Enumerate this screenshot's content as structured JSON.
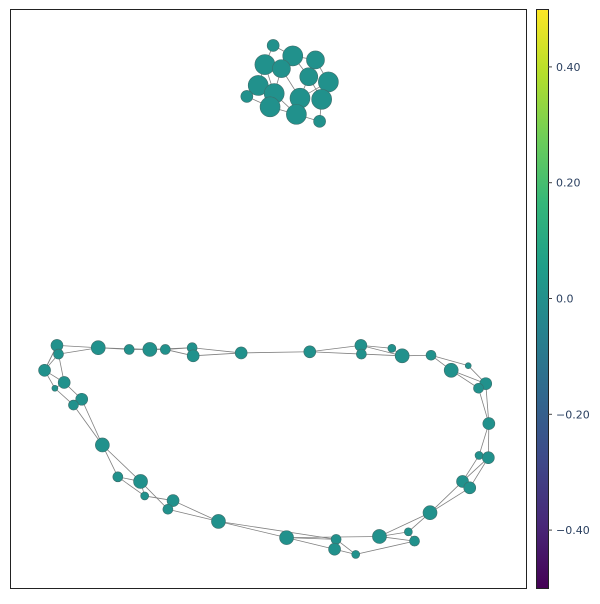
{
  "chart_data": {
    "type": "scatter",
    "title": "",
    "xlabel": "",
    "ylabel": "",
    "grid": false,
    "legend": "none",
    "xlim": [
      0,
      100
    ],
    "ylim": [
      0,
      100
    ],
    "node_color": "#21918c",
    "node_stroke": "#3d6e6b",
    "edge_color": "#808080",
    "colorbar": {
      "colorscale": "viridis",
      "range": [
        -0.5,
        0.5
      ],
      "ticks": [
        {
          "value": 0.4,
          "label": "0.40"
        },
        {
          "value": 0.2,
          "label": "0.20"
        },
        {
          "value": 0.0,
          "label": "0.0"
        },
        {
          "value": -0.2,
          "label": "−0.20"
        },
        {
          "value": -0.4,
          "label": "−0.40"
        }
      ],
      "stops": [
        "#440154",
        "#482878",
        "#3e4989",
        "#31688e",
        "#26828e",
        "#1f9e89",
        "#35b779",
        "#6ece58",
        "#b5de2b",
        "#fde725"
      ]
    },
    "nodes": [
      {
        "x": 51.0,
        "y": 93.7,
        "size": 6,
        "value": 0
      },
      {
        "x": 54.8,
        "y": 91.9,
        "size": 10,
        "value": 0
      },
      {
        "x": 59.2,
        "y": 91.2,
        "size": 9,
        "value": 0
      },
      {
        "x": 49.4,
        "y": 90.4,
        "size": 10,
        "value": 0
      },
      {
        "x": 52.6,
        "y": 89.7,
        "size": 9,
        "value": 0
      },
      {
        "x": 57.9,
        "y": 88.3,
        "size": 9,
        "value": 0
      },
      {
        "x": 61.7,
        "y": 87.4,
        "size": 10,
        "value": 0
      },
      {
        "x": 48.1,
        "y": 86.8,
        "size": 10,
        "value": 0
      },
      {
        "x": 51.2,
        "y": 85.4,
        "size": 10,
        "value": 0
      },
      {
        "x": 56.2,
        "y": 84.6,
        "size": 10,
        "value": 0
      },
      {
        "x": 60.4,
        "y": 84.4,
        "size": 10,
        "value": 0
      },
      {
        "x": 45.9,
        "y": 84.9,
        "size": 6,
        "value": 0
      },
      {
        "x": 50.4,
        "y": 83.1,
        "size": 10,
        "value": 0
      },
      {
        "x": 55.5,
        "y": 81.8,
        "size": 10,
        "value": 0
      },
      {
        "x": 60.0,
        "y": 80.6,
        "size": 6,
        "value": 0
      },
      {
        "x": 9.1,
        "y": 41.9,
        "size": 6,
        "value": 0
      },
      {
        "x": 9.4,
        "y": 40.4,
        "size": 5,
        "value": 0
      },
      {
        "x": 17.1,
        "y": 41.5,
        "size": 7,
        "value": 0
      },
      {
        "x": 23.1,
        "y": 41.2,
        "size": 5,
        "value": 0
      },
      {
        "x": 27.1,
        "y": 41.2,
        "size": 7,
        "value": 0
      },
      {
        "x": 30.1,
        "y": 41.2,
        "size": 5,
        "value": 0
      },
      {
        "x": 35.3,
        "y": 41.5,
        "size": 5,
        "value": 0
      },
      {
        "x": 35.5,
        "y": 40.1,
        "size": 6,
        "value": 0
      },
      {
        "x": 44.8,
        "y": 40.6,
        "size": 6,
        "value": 0
      },
      {
        "x": 58.1,
        "y": 40.8,
        "size": 6,
        "value": 0
      },
      {
        "x": 68.0,
        "y": 41.9,
        "size": 6,
        "value": 0
      },
      {
        "x": 68.1,
        "y": 40.4,
        "size": 5,
        "value": 0
      },
      {
        "x": 74.0,
        "y": 41.4,
        "size": 4,
        "value": 0
      },
      {
        "x": 76.0,
        "y": 40.1,
        "size": 7,
        "value": 0
      },
      {
        "x": 81.6,
        "y": 40.2,
        "size": 5,
        "value": 0
      },
      {
        "x": 88.8,
        "y": 38.4,
        "size": 3,
        "value": 0
      },
      {
        "x": 85.5,
        "y": 37.6,
        "size": 7,
        "value": 0
      },
      {
        "x": 6.7,
        "y": 37.6,
        "size": 6,
        "value": 0
      },
      {
        "x": 10.5,
        "y": 35.5,
        "size": 6,
        "value": 0
      },
      {
        "x": 8.7,
        "y": 34.5,
        "size": 3,
        "value": 0
      },
      {
        "x": 13.9,
        "y": 32.6,
        "size": 6,
        "value": 0
      },
      {
        "x": 12.3,
        "y": 31.6,
        "size": 5,
        "value": 0
      },
      {
        "x": 92.2,
        "y": 35.3,
        "size": 6,
        "value": 0
      },
      {
        "x": 90.8,
        "y": 34.5,
        "size": 5,
        "value": 0
      },
      {
        "x": 92.8,
        "y": 28.4,
        "size": 6,
        "value": 0
      },
      {
        "x": 17.9,
        "y": 24.7,
        "size": 7,
        "value": 0
      },
      {
        "x": 90.9,
        "y": 22.9,
        "size": 4,
        "value": 0
      },
      {
        "x": 92.7,
        "y": 22.5,
        "size": 6,
        "value": 0
      },
      {
        "x": 20.9,
        "y": 19.2,
        "size": 5,
        "value": 0
      },
      {
        "x": 25.3,
        "y": 18.4,
        "size": 7,
        "value": 0
      },
      {
        "x": 87.7,
        "y": 18.4,
        "size": 6,
        "value": 0
      },
      {
        "x": 89.1,
        "y": 17.3,
        "size": 6,
        "value": 0
      },
      {
        "x": 26.1,
        "y": 15.9,
        "size": 4,
        "value": 0
      },
      {
        "x": 31.6,
        "y": 15.1,
        "size": 6,
        "value": 0
      },
      {
        "x": 30.6,
        "y": 13.6,
        "size": 5,
        "value": 0
      },
      {
        "x": 40.4,
        "y": 11.5,
        "size": 7,
        "value": 0
      },
      {
        "x": 81.4,
        "y": 13.0,
        "size": 7,
        "value": 0
      },
      {
        "x": 77.2,
        "y": 9.7,
        "size": 4,
        "value": 0
      },
      {
        "x": 53.6,
        "y": 8.7,
        "size": 7,
        "value": 0
      },
      {
        "x": 63.2,
        "y": 8.4,
        "size": 5,
        "value": 0
      },
      {
        "x": 71.6,
        "y": 8.9,
        "size": 7,
        "value": 0
      },
      {
        "x": 78.4,
        "y": 8.1,
        "size": 5,
        "value": 0
      },
      {
        "x": 62.9,
        "y": 6.7,
        "size": 6,
        "value": 0
      },
      {
        "x": 67.0,
        "y": 5.8,
        "size": 4,
        "value": 0
      }
    ],
    "edges": [
      [
        0,
        1
      ],
      [
        0,
        3
      ],
      [
        1,
        2
      ],
      [
        1,
        4
      ],
      [
        2,
        5
      ],
      [
        2,
        6
      ],
      [
        3,
        4
      ],
      [
        3,
        7
      ],
      [
        4,
        8
      ],
      [
        4,
        9
      ],
      [
        5,
        9
      ],
      [
        5,
        10
      ],
      [
        6,
        10
      ],
      [
        7,
        8
      ],
      [
        7,
        11
      ],
      [
        8,
        12
      ],
      [
        8,
        13
      ],
      [
        9,
        13
      ],
      [
        10,
        14
      ],
      [
        11,
        12
      ],
      [
        12,
        13
      ],
      [
        13,
        14
      ],
      [
        1,
        5
      ],
      [
        3,
        8
      ],
      [
        6,
        9
      ],
      [
        15,
        17
      ],
      [
        15,
        32
      ],
      [
        16,
        17
      ],
      [
        16,
        33
      ],
      [
        17,
        18
      ],
      [
        17,
        19
      ],
      [
        18,
        19
      ],
      [
        19,
        20
      ],
      [
        19,
        21
      ],
      [
        20,
        21
      ],
      [
        20,
        22
      ],
      [
        21,
        23
      ],
      [
        22,
        23
      ],
      [
        23,
        24
      ],
      [
        24,
        25
      ],
      [
        24,
        26
      ],
      [
        25,
        27
      ],
      [
        25,
        28
      ],
      [
        26,
        28
      ],
      [
        27,
        28
      ],
      [
        28,
        29
      ],
      [
        29,
        30
      ],
      [
        29,
        31
      ],
      [
        30,
        37
      ],
      [
        31,
        38
      ],
      [
        31,
        37
      ],
      [
        37,
        38
      ],
      [
        37,
        39
      ],
      [
        38,
        39
      ],
      [
        39,
        41
      ],
      [
        39,
        42
      ],
      [
        41,
        42
      ],
      [
        41,
        45
      ],
      [
        42,
        46
      ],
      [
        42,
        45
      ],
      [
        45,
        46
      ],
      [
        45,
        51
      ],
      [
        46,
        51
      ],
      [
        51,
        55
      ],
      [
        51,
        52
      ],
      [
        52,
        55
      ],
      [
        52,
        56
      ],
      [
        55,
        56
      ],
      [
        55,
        53
      ],
      [
        56,
        58
      ],
      [
        53,
        54
      ],
      [
        53,
        57
      ],
      [
        54,
        58
      ],
      [
        57,
        58
      ],
      [
        53,
        50
      ],
      [
        54,
        50
      ],
      [
        50,
        48
      ],
      [
        50,
        49
      ],
      [
        48,
        49
      ],
      [
        48,
        47
      ],
      [
        49,
        44
      ],
      [
        47,
        44
      ],
      [
        47,
        43
      ],
      [
        44,
        43
      ],
      [
        43,
        40
      ],
      [
        44,
        40
      ],
      [
        40,
        35
      ],
      [
        40,
        36
      ],
      [
        35,
        36
      ],
      [
        35,
        33
      ],
      [
        36,
        34
      ],
      [
        33,
        34
      ],
      [
        33,
        32
      ],
      [
        34,
        32
      ],
      [
        32,
        16
      ],
      [
        32,
        15
      ],
      [
        15,
        16
      ]
    ]
  }
}
